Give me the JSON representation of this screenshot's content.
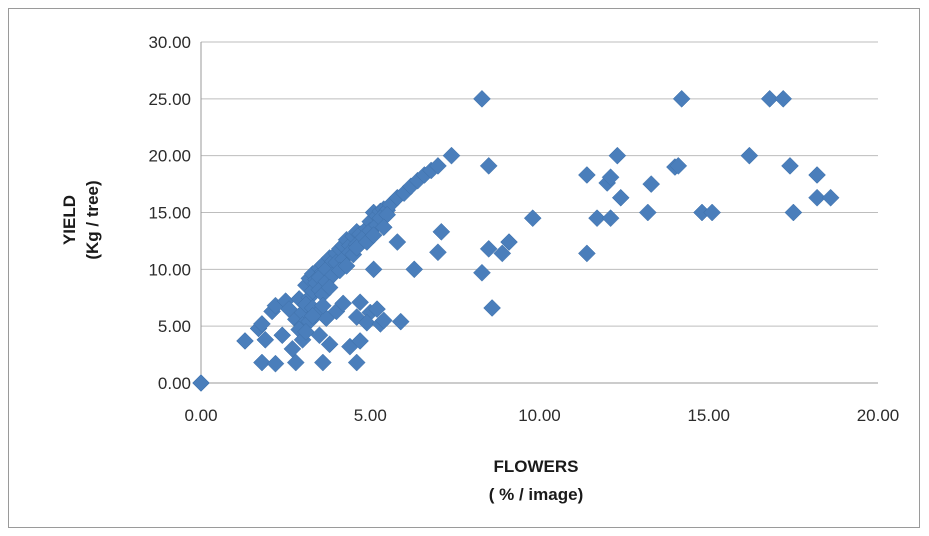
{
  "chart_data": {
    "type": "scatter",
    "title": "",
    "xlabel": [
      "FLOWERS",
      "( % / image)"
    ],
    "ylabel": [
      "YIELD",
      "(Kg / tree)"
    ],
    "xlim": [
      0,
      20
    ],
    "ylim": [
      0,
      30
    ],
    "x_ticks": [
      "0.00",
      "5.00",
      "10.00",
      "15.00",
      "20.00"
    ],
    "y_ticks": [
      "0.00",
      "5.00",
      "10.00",
      "15.00",
      "20.00",
      "25.00",
      "30.00"
    ],
    "grid": "horizontal",
    "marker_color": "#4a7ebb",
    "marker": "diamond",
    "series": [
      {
        "x": [
          0.0,
          1.3,
          1.7,
          1.8,
          1.9,
          2.1,
          2.2,
          2.4,
          2.5,
          2.6,
          2.7,
          2.8,
          2.9,
          3.0,
          3.0,
          3.1,
          3.2,
          3.3,
          3.4,
          3.5,
          3.6,
          3.2,
          3.3,
          3.4,
          3.5,
          3.6,
          3.7,
          3.8,
          3.9,
          4.0,
          4.1,
          4.2,
          4.3,
          4.4,
          4.5,
          4.6,
          4.7,
          4.8,
          4.9,
          5.0,
          5.1,
          5.2,
          5.3,
          5.4,
          5.5,
          5.6,
          5.8,
          6.0,
          6.2,
          6.4,
          6.6,
          6.8,
          7.0,
          7.4,
          3.5,
          3.7,
          3.9,
          4.0,
          4.2,
          4.4,
          4.5,
          4.6,
          4.8,
          5.0,
          5.2,
          5.3,
          5.5,
          3.1,
          3.3,
          3.6,
          3.8,
          4.1,
          4.3,
          4.6,
          4.9,
          5.1,
          5.4,
          2.9,
          3.2,
          3.4,
          3.7,
          4.0,
          4.2,
          4.7,
          5.0,
          5.2,
          3.0,
          3.1,
          3.3,
          3.5,
          3.6,
          3.8,
          4.4,
          4.6,
          4.7,
          4.9,
          5.1,
          5.3,
          5.4,
          5.8,
          5.9,
          6.3,
          7.0,
          7.1,
          8.3,
          8.6,
          9.1,
          8.5,
          8.9,
          8.3,
          8.5,
          9.8,
          11.4,
          11.4,
          11.7,
          12.0,
          12.1,
          12.1,
          12.3,
          12.4,
          13.2,
          13.3,
          14.0,
          14.2,
          14.1,
          14.8,
          15.1,
          16.2,
          16.8,
          17.2,
          17.4,
          17.5,
          18.2,
          18.2,
          18.6,
          1.8,
          2.2,
          2.8,
          3.6,
          4.6
        ],
        "y": [
          0.0,
          3.7,
          4.8,
          5.2,
          3.8,
          6.3,
          6.8,
          4.2,
          7.2,
          6.5,
          3.0,
          5.6,
          7.4,
          6.2,
          5.1,
          8.6,
          9.2,
          9.6,
          9.1,
          10.1,
          9.8,
          7.5,
          8.1,
          8.8,
          9.3,
          10.4,
          10.0,
          11.0,
          10.7,
          11.4,
          11.8,
          12.1,
          12.6,
          12.1,
          12.9,
          13.3,
          13.1,
          12.5,
          13.6,
          14.2,
          15.0,
          14.7,
          15.1,
          15.3,
          15.2,
          15.7,
          16.3,
          16.7,
          17.3,
          17.8,
          18.3,
          18.7,
          19.1,
          20.0,
          8.2,
          8.9,
          9.5,
          10.6,
          10.9,
          11.5,
          11.3,
          12.2,
          12.8,
          13.4,
          13.9,
          14.5,
          14.8,
          6.9,
          6.6,
          7.8,
          8.4,
          9.9,
          10.3,
          11.9,
          12.4,
          13.0,
          13.7,
          4.7,
          5.4,
          6.0,
          5.7,
          6.3,
          7.0,
          7.1,
          6.2,
          6.5,
          3.8,
          4.5,
          5.9,
          4.2,
          6.8,
          3.4,
          3.2,
          5.8,
          3.7,
          5.3,
          10.0,
          5.2,
          5.5,
          12.4,
          5.4,
          10.0,
          11.5,
          13.3,
          9.7,
          6.6,
          12.4,
          11.8,
          11.4,
          25.0,
          19.1,
          14.5,
          11.4,
          18.3,
          14.5,
          17.6,
          14.5,
          18.1,
          20.0,
          16.3,
          15.0,
          17.5,
          19.0,
          25.0,
          19.1,
          15.0,
          15.0,
          20.0,
          25.0,
          25.0,
          19.1,
          15.0,
          18.3,
          16.3,
          16.3,
          1.8,
          1.7,
          1.8,
          1.8,
          1.8
        ]
      }
    ]
  }
}
